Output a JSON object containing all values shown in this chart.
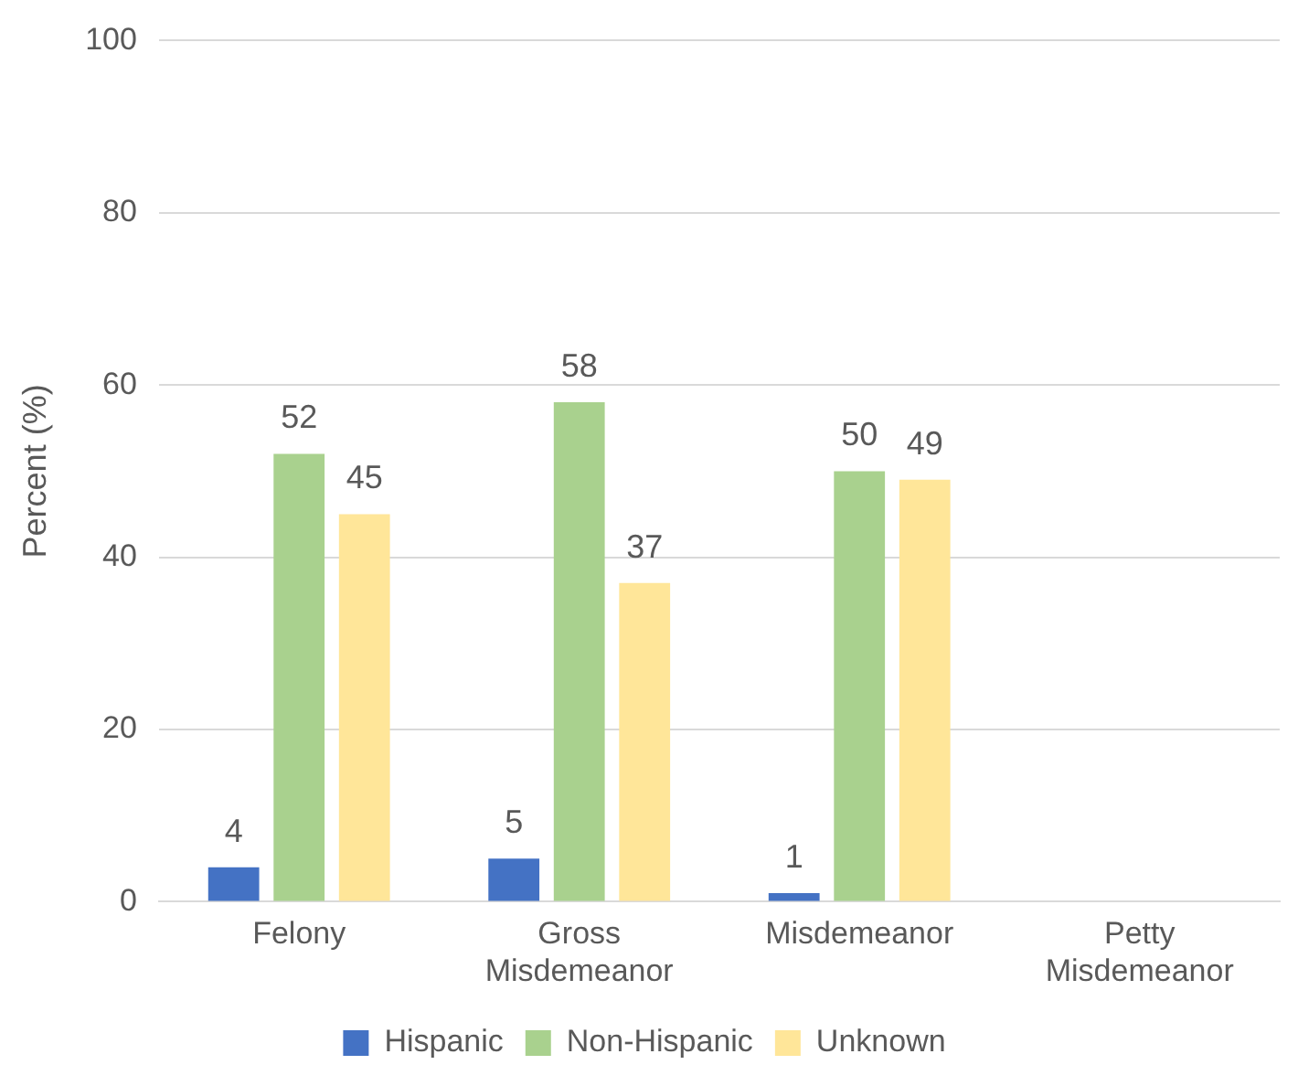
{
  "chart_data": {
    "type": "bar",
    "ylabel": "Percent (%)",
    "categories": [
      "Felony",
      "Gross Misdemeanor",
      "Misdemeanor",
      "Petty Misdemeanor"
    ],
    "series": [
      {
        "name": "Hispanic",
        "color": "#4472c4",
        "values": [
          4,
          5,
          1,
          null
        ]
      },
      {
        "name": "Non-Hispanic",
        "color": "#a9d18e",
        "values": [
          52,
          58,
          50,
          null
        ]
      },
      {
        "name": "Unknown",
        "color": "#ffe699",
        "values": [
          45,
          37,
          49,
          null
        ]
      }
    ],
    "ylim": [
      0,
      100
    ],
    "yticks": [
      0,
      20,
      40,
      60,
      80,
      100
    ],
    "grid": "y",
    "legend": "bottom",
    "data_labels": true
  }
}
